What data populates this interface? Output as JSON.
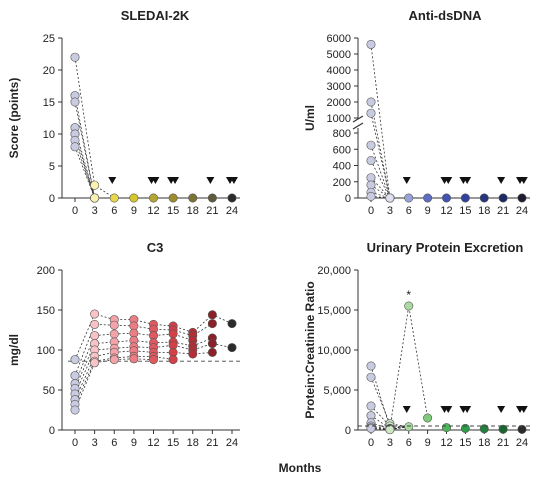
{
  "figure": {
    "xlabel": "Months"
  },
  "chart_data": [
    {
      "type": "scatter",
      "title": "SLEDAI-2K",
      "xlabel": "Months",
      "ylabel": "Score (points)",
      "ylim": [
        0,
        25
      ],
      "xticks": [
        0,
        3,
        6,
        9,
        12,
        15,
        18,
        21,
        24
      ],
      "yticks": [
        0,
        5,
        10,
        15,
        20,
        25
      ],
      "yticklabels": [
        "0",
        "5",
        "10",
        "15",
        "20",
        "25"
      ],
      "baseline_values": [
        22,
        16,
        15,
        11,
        10,
        10,
        9,
        8
      ],
      "month3_values": [
        2,
        0,
        0,
        0,
        0,
        0,
        0,
        0
      ],
      "followup_x": [
        6,
        9,
        12,
        15,
        18,
        21,
        24
      ],
      "followup_values": [
        0,
        0,
        0,
        0,
        0,
        0,
        0
      ],
      "flare_markers": [
        6,
        12,
        12.6,
        15,
        15.6,
        21,
        24,
        24.6
      ],
      "marker_colors": [
        "#c9cbe1",
        "#faf3b0",
        "#e6d84a",
        "#d6c72d",
        "#b5a533",
        "#9c8c2f",
        "#7b7236",
        "#5e5a3b",
        "#2b2b2b"
      ]
    },
    {
      "type": "scatter",
      "title": "Anti-dsDNA",
      "xlabel": "Months",
      "ylabel": "U/ml",
      "scale": "broken",
      "ylim": [
        0,
        6000
      ],
      "xticks": [
        0,
        3,
        6,
        9,
        12,
        15,
        18,
        21,
        24
      ],
      "yticks": [
        0,
        200,
        400,
        600,
        800,
        1000,
        2000,
        3000,
        4000,
        5000,
        6000
      ],
      "yticklabels": [
        "0",
        "200",
        "400",
        "600",
        "800",
        "1000",
        "2000",
        "3000",
        "4000",
        "5000",
        "6000"
      ],
      "baseline_values": [
        5600,
        2000,
        1300,
        650,
        460,
        250,
        160,
        70,
        20
      ],
      "month3_values": [
        0,
        0,
        0,
        0,
        0,
        0,
        0,
        0
      ],
      "followup_x": [
        6,
        9,
        12,
        15,
        18,
        21,
        24
      ],
      "followup_values": [
        0,
        0,
        0,
        0,
        0,
        0,
        0
      ],
      "flare_markers": [
        6,
        12,
        12.6,
        15,
        15.6,
        21,
        24,
        24.6
      ],
      "marker_colors": [
        "#c9cbe1",
        "#dfe0f0",
        "#9aa3d9",
        "#5f6cc2",
        "#4353b3",
        "#33439d",
        "#27347e",
        "#1e2a66",
        "#1c1c2e"
      ]
    },
    {
      "type": "scatter",
      "title": "C3",
      "xlabel": "Months",
      "ylabel": "mg/dl",
      "ylim": [
        0,
        200
      ],
      "reference_line": 86,
      "xticks": [
        0,
        3,
        6,
        9,
        12,
        15,
        18,
        21,
        24
      ],
      "yticks": [
        0,
        50,
        100,
        150,
        200
      ],
      "yticklabels": [
        "0",
        "50",
        "100",
        "150",
        "200"
      ],
      "series": [
        {
          "values": [
            88,
            145,
            138,
            138,
            132,
            130,
            122,
            144,
            133
          ]
        },
        {
          "values": [
            68,
            132,
            131,
            130,
            126,
            125,
            118,
            133
          ]
        },
        {
          "values": [
            58,
            118,
            120,
            121,
            118,
            120,
            112
          ]
        },
        {
          "values": [
            52,
            108,
            110,
            112,
            109,
            110,
            105,
            115
          ]
        },
        {
          "values": [
            45,
            100,
            102,
            104,
            103,
            106,
            100,
            108,
            103
          ]
        },
        {
          "values": [
            38,
            92,
            97,
            99,
            97,
            97,
            95,
            97
          ]
        },
        {
          "values": [
            32,
            86,
            90,
            92,
            92,
            88
          ]
        },
        {
          "values": [
            25,
            84,
            88,
            89,
            88
          ]
        }
      ],
      "marker_colors": [
        "#c9cbe1",
        "#f9c3c6",
        "#f4a3a8",
        "#ec7d84",
        "#de5a60",
        "#d24148",
        "#b52e35",
        "#8b2128",
        "#2b2b2b"
      ]
    },
    {
      "type": "scatter",
      "title": "Urinary Protein Excretion",
      "xlabel": "Months",
      "ylabel": "Protein:Creatinine Ratio",
      "ylim": [
        0,
        20000
      ],
      "reference_line": 500,
      "xticks": [
        0,
        3,
        6,
        9,
        12,
        15,
        18,
        21,
        24
      ],
      "yticks": [
        0,
        5000,
        10000,
        15000,
        20000
      ],
      "yticklabels": [
        "0",
        "5,000",
        "10,000",
        "15,000",
        "20,000"
      ],
      "baseline_values": [
        8000,
        6600,
        3000,
        1800,
        900,
        500,
        300,
        200
      ],
      "month3_values": [
        300,
        800,
        500,
        200,
        150,
        100,
        60,
        40
      ],
      "spike": {
        "x": 6,
        "value": 15500,
        "annotation": "*"
      },
      "followup_x": [
        6,
        9,
        12,
        15,
        18,
        21,
        24
      ],
      "followup_values": [
        400,
        1500,
        300,
        200,
        150,
        100,
        80
      ],
      "flare_markers": [
        6,
        12,
        12.6,
        15,
        15.6,
        21,
        24,
        24.6
      ],
      "marker_colors": [
        "#c9cbe1",
        "#cfe7c6",
        "#a9dba0",
        "#7fcb79",
        "#4fb55a",
        "#2f9c47",
        "#23803a",
        "#1b6530",
        "#2b2b2b"
      ]
    }
  ]
}
